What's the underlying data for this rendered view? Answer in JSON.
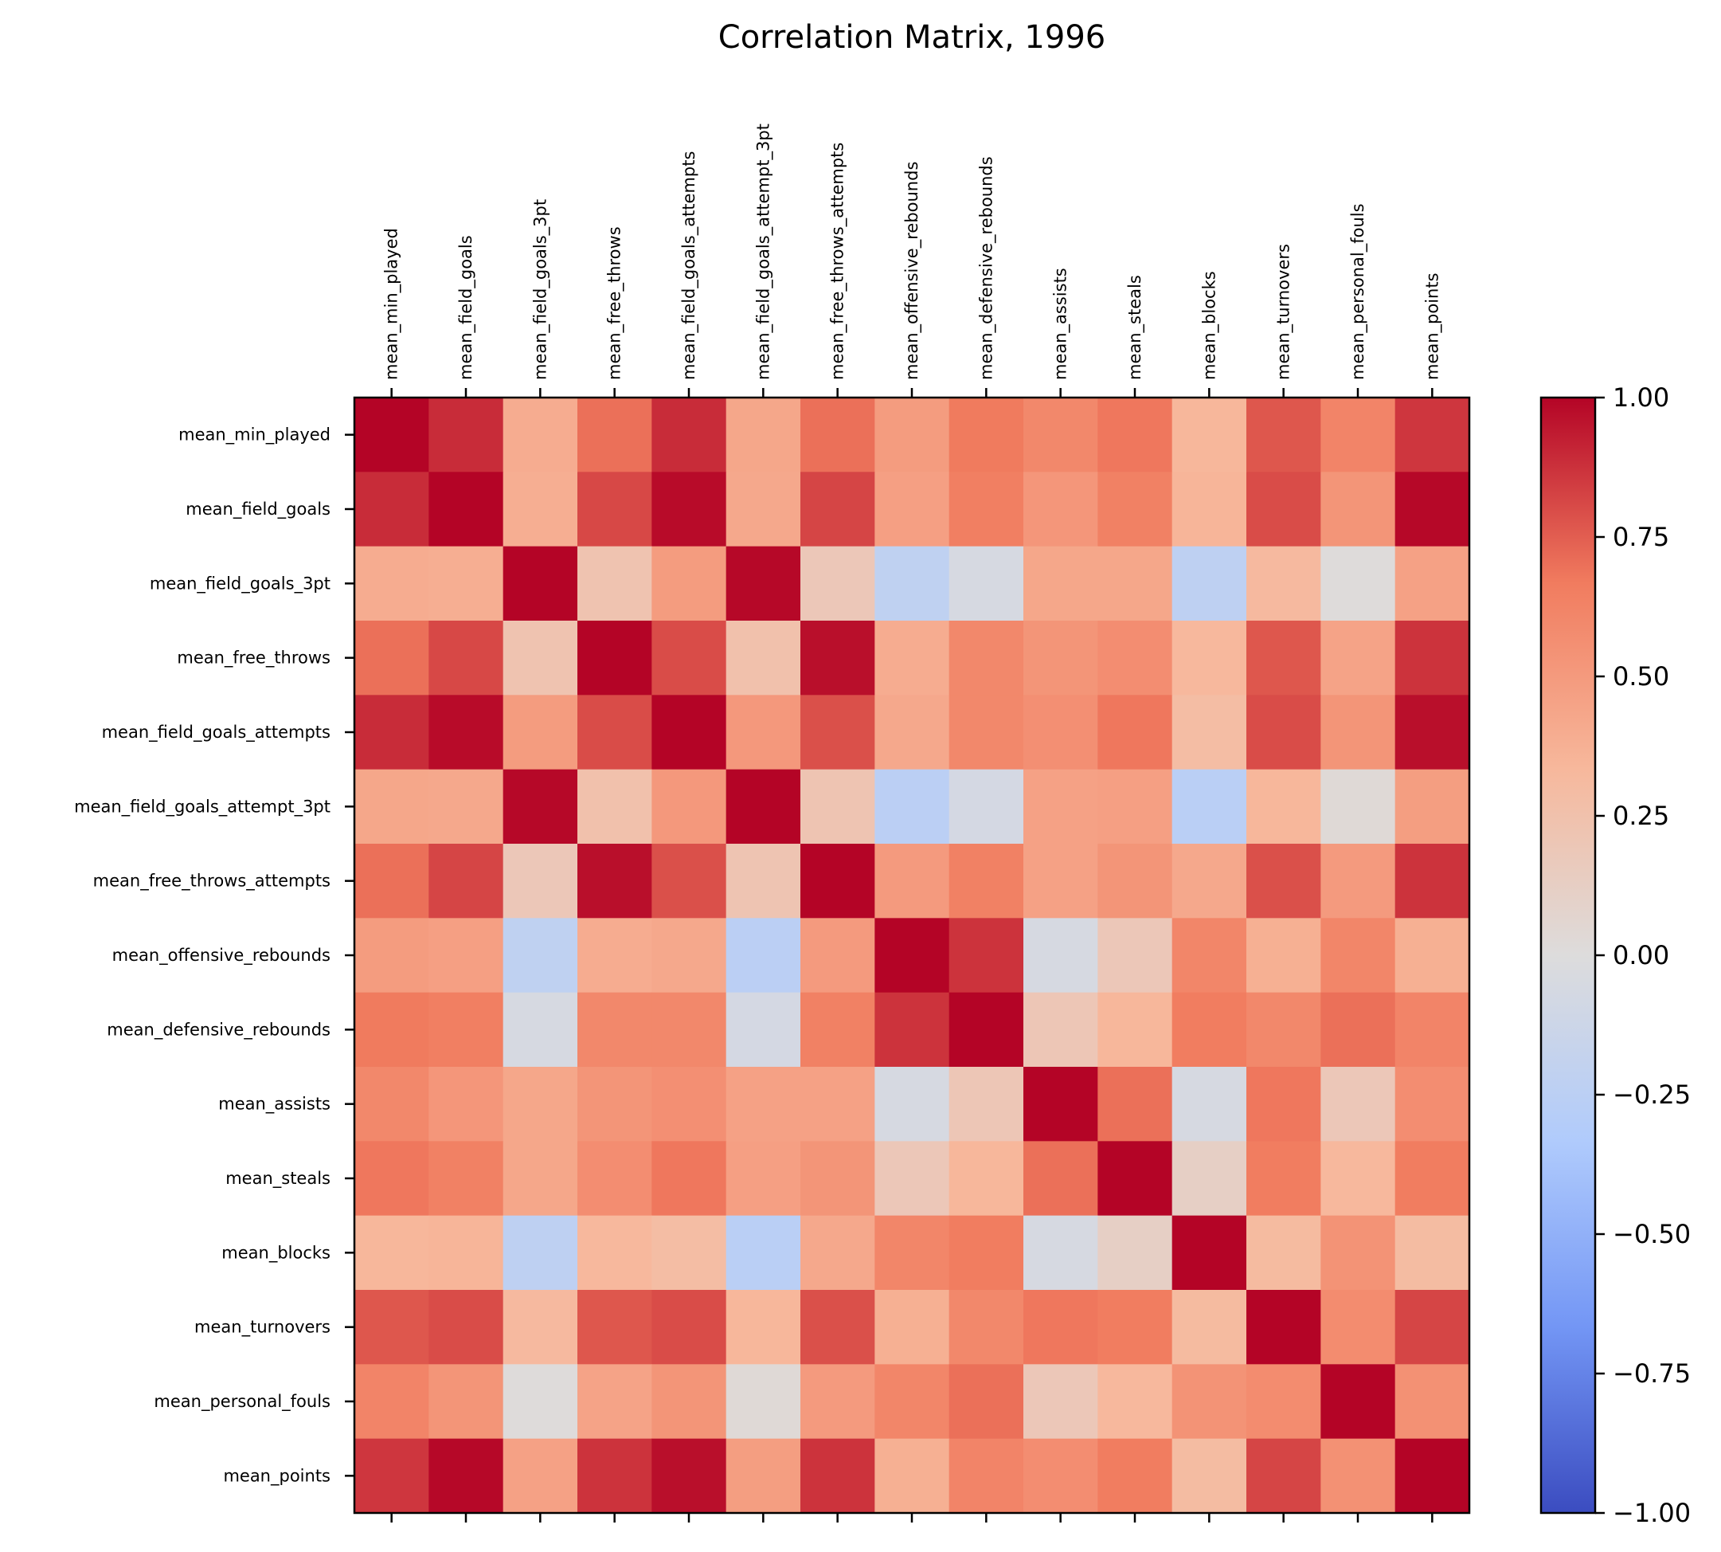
{
  "chart_data": {
    "type": "heatmap",
    "title": "Correlation Matrix, 1996",
    "labels": [
      "mean_min_played",
      "mean_field_goals",
      "mean_field_goals_3pt",
      "mean_free_throws",
      "mean_field_goals_attempts",
      "mean_field_goals_attempt_3pt",
      "mean_free_throws_attempts",
      "mean_offensive_rebounds",
      "mean_defensive_rebounds",
      "mean_assists",
      "mean_steals",
      "mean_blocks",
      "mean_turnovers",
      "mean_personal_fouls",
      "mean_points"
    ],
    "values": [
      [
        1.0,
        0.89,
        0.4,
        0.7,
        0.89,
        0.43,
        0.7,
        0.49,
        0.67,
        0.6,
        0.68,
        0.34,
        0.77,
        0.62,
        0.86
      ],
      [
        0.89,
        1.0,
        0.39,
        0.81,
        0.98,
        0.42,
        0.82,
        0.47,
        0.65,
        0.52,
        0.64,
        0.35,
        0.8,
        0.53,
        0.99
      ],
      [
        0.4,
        0.39,
        1.0,
        0.23,
        0.49,
        0.99,
        0.19,
        -0.22,
        -0.05,
        0.43,
        0.43,
        -0.23,
        0.32,
        0.01,
        0.46
      ],
      [
        0.7,
        0.81,
        0.23,
        1.0,
        0.8,
        0.25,
        0.97,
        0.4,
        0.6,
        0.53,
        0.57,
        0.33,
        0.77,
        0.45,
        0.87
      ],
      [
        0.89,
        0.98,
        0.49,
        0.8,
        1.0,
        0.51,
        0.79,
        0.42,
        0.6,
        0.56,
        0.68,
        0.29,
        0.8,
        0.53,
        0.97
      ],
      [
        0.43,
        0.42,
        0.99,
        0.25,
        0.51,
        1.0,
        0.22,
        -0.25,
        -0.07,
        0.46,
        0.47,
        -0.26,
        0.34,
        0.03,
        0.48
      ],
      [
        0.7,
        0.82,
        0.19,
        0.97,
        0.79,
        0.22,
        1.0,
        0.5,
        0.64,
        0.46,
        0.53,
        0.42,
        0.79,
        0.5,
        0.87
      ],
      [
        0.49,
        0.47,
        -0.22,
        0.4,
        0.42,
        -0.25,
        0.5,
        1.0,
        0.87,
        -0.05,
        0.19,
        0.61,
        0.38,
        0.61,
        0.38
      ],
      [
        0.67,
        0.65,
        -0.05,
        0.6,
        0.6,
        -0.07,
        0.64,
        0.87,
        1.0,
        0.2,
        0.34,
        0.66,
        0.6,
        0.7,
        0.62
      ],
      [
        0.6,
        0.52,
        0.43,
        0.53,
        0.56,
        0.46,
        0.46,
        -0.05,
        0.2,
        1.0,
        0.7,
        -0.05,
        0.68,
        0.19,
        0.57
      ],
      [
        0.68,
        0.64,
        0.43,
        0.57,
        0.68,
        0.47,
        0.53,
        0.19,
        0.34,
        0.7,
        1.0,
        0.12,
        0.66,
        0.33,
        0.66
      ],
      [
        0.34,
        0.35,
        -0.23,
        0.33,
        0.29,
        -0.26,
        0.42,
        0.61,
        0.66,
        -0.05,
        0.12,
        1.0,
        0.31,
        0.54,
        0.3
      ],
      [
        0.77,
        0.8,
        0.32,
        0.77,
        0.8,
        0.34,
        0.79,
        0.38,
        0.6,
        0.68,
        0.66,
        0.31,
        1.0,
        0.58,
        0.82
      ],
      [
        0.62,
        0.53,
        0.01,
        0.45,
        0.53,
        0.03,
        0.5,
        0.61,
        0.7,
        0.19,
        0.33,
        0.54,
        0.58,
        1.0,
        0.55
      ],
      [
        0.86,
        0.99,
        0.46,
        0.87,
        0.97,
        0.48,
        0.87,
        0.38,
        0.62,
        0.57,
        0.66,
        0.3,
        0.82,
        0.55,
        1.0
      ]
    ],
    "vmin": -1.0,
    "vmax": 1.0,
    "colormap": "coolwarm",
    "colormap_stops": [
      "#3b4cc0",
      "#7396f5",
      "#b0cbfc",
      "#dddcdc",
      "#f7b89c",
      "#f17c5f",
      "#b40426"
    ],
    "colorbar_ticks": [
      "1.00",
      "0.75",
      "0.50",
      "0.25",
      "0.00",
      "−0.25",
      "−0.50",
      "−0.75",
      "−1.00"
    ],
    "colorbar_tick_values": [
      1.0,
      0.75,
      0.5,
      0.25,
      0.0,
      -0.25,
      -0.5,
      -0.75,
      -1.0
    ],
    "x_ticks_position": "top",
    "grid": false,
    "colorbar_position": "right"
  }
}
